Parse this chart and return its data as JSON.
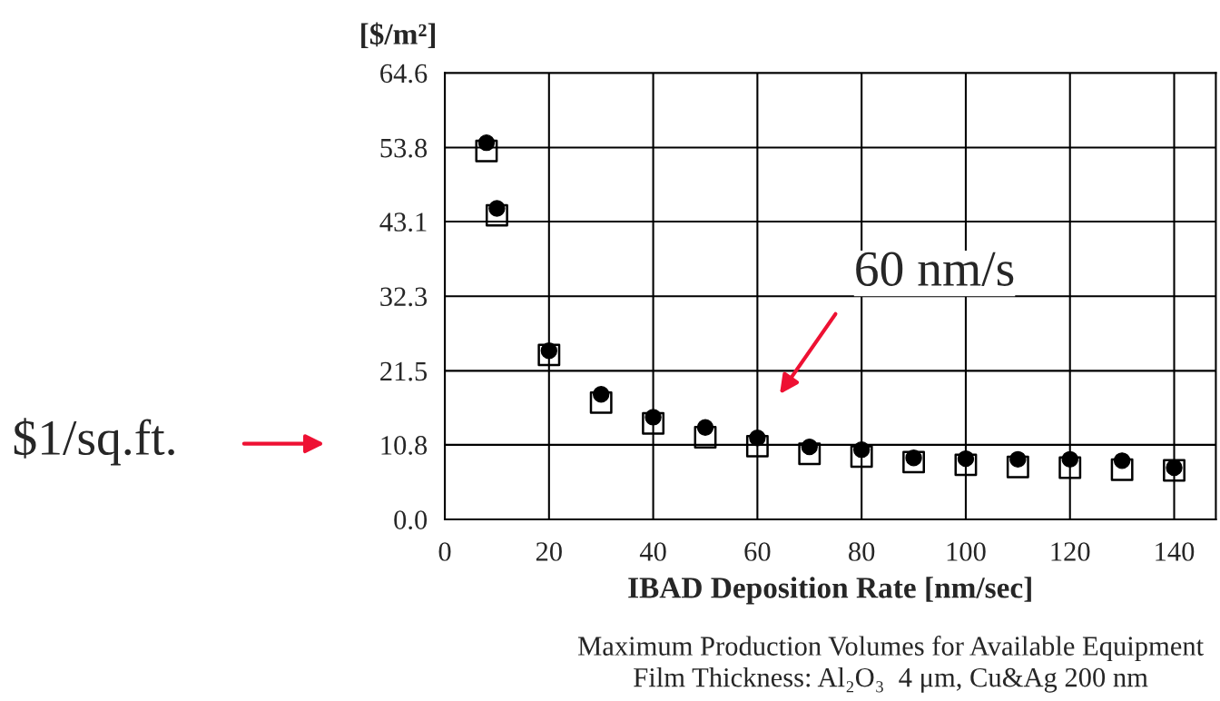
{
  "chart_data": {
    "type": "scatter",
    "ylabel": "[$/m²]",
    "xlabel": "IBAD Deposition Rate [nm/sec]",
    "x": [
      8,
      10,
      20,
      30,
      40,
      50,
      60,
      70,
      80,
      90,
      100,
      110,
      120,
      130,
      140
    ],
    "series": [
      {
        "color": "#000000",
        "marker": "circle",
        "values": [
          54.5,
          45.0,
          24.4,
          18.1,
          14.8,
          13.3,
          11.8,
          10.5,
          10.1,
          8.9,
          8.8,
          8.7,
          8.7,
          8.5,
          7.5
        ]
      },
      {
        "color": "#000000",
        "marker": "square",
        "values": [
          53.3,
          44.0,
          23.8,
          16.9,
          13.9,
          11.9,
          10.6,
          9.5,
          9.1,
          8.3,
          7.9,
          7.6,
          7.5,
          7.2,
          7.1
        ]
      }
    ],
    "xlim": [
      0,
      148
    ],
    "xticks": [
      0,
      20,
      40,
      60,
      80,
      100,
      120,
      140
    ],
    "ylim": [
      0,
      64.6
    ],
    "yticks": [
      {
        "value": 0,
        "label": "0.0"
      },
      10.8,
      21.5,
      32.3,
      43.1,
      53.8,
      64.6
    ],
    "grid": true,
    "annotations": [
      "60 nm/s",
      "$1/sq.ft.",
      "Maximum Production Volumes for Available Equipment",
      "Film Thickness: Al₂O₃  4 μm, Cu&Ag 200 nm"
    ]
  }
}
